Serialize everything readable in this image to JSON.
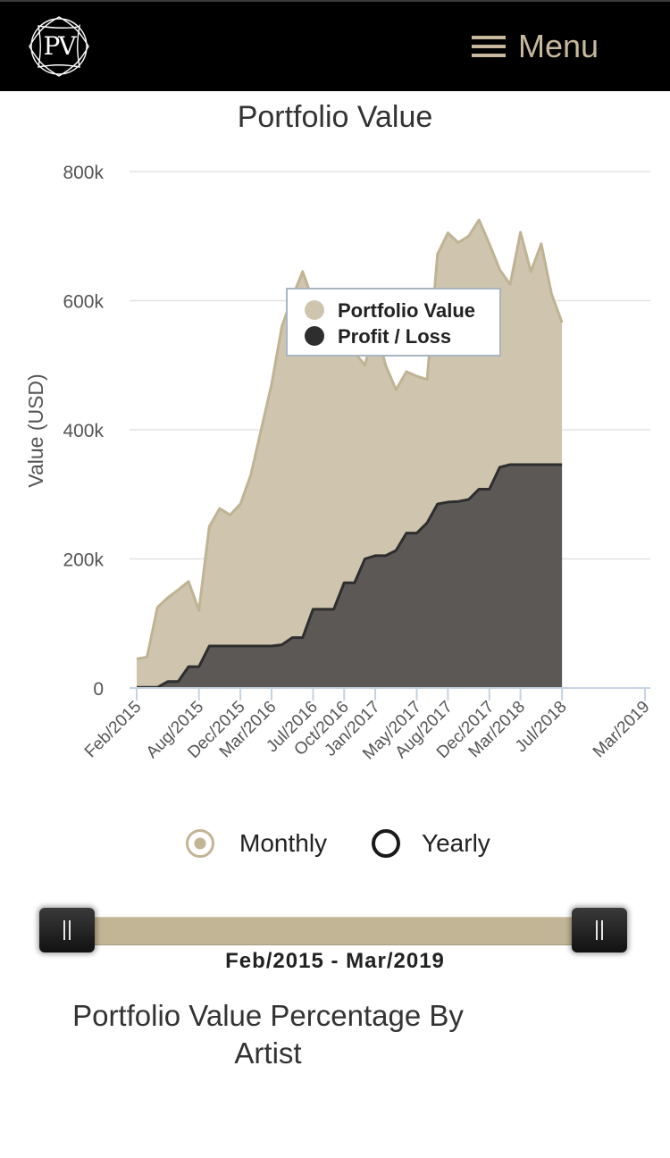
{
  "header": {
    "logo_text": "PV",
    "menu_label": "Menu"
  },
  "chart_title": "Portfolio Value",
  "chart_data": {
    "type": "area",
    "title": "Portfolio Value",
    "xlabel": "",
    "ylabel": "Value (USD)",
    "ylim": [
      0,
      800000
    ],
    "yticks": [
      0,
      200000,
      400000,
      600000,
      800000
    ],
    "ytick_labels": [
      "0",
      "200k",
      "400k",
      "600k",
      "800k"
    ],
    "x_start": "Feb/2015",
    "x_end": "Mar/2019",
    "x_tick_labels": [
      "Feb/2015",
      "Aug/2015",
      "Dec/2015",
      "Mar/2016",
      "Jul/2016",
      "Oct/2016",
      "Jan/2017",
      "May/2017",
      "Aug/2017",
      "Dec/2017",
      "Mar/2018",
      "Jul/2018",
      "Mar/2019"
    ],
    "x_tick_months": [
      0,
      6,
      10,
      13,
      17,
      20,
      23,
      27,
      30,
      34,
      37,
      41,
      49
    ],
    "grid": true,
    "legend_position": "top-center",
    "series": [
      {
        "name": "Portfolio Value",
        "color": "#cfc5af",
        "line_color": "#bfb394",
        "points": [
          [
            0,
            45000
          ],
          [
            1,
            48000
          ],
          [
            2,
            125000
          ],
          [
            3,
            140000
          ],
          [
            4,
            152000
          ],
          [
            5,
            165000
          ],
          [
            6,
            120000
          ],
          [
            7,
            250000
          ],
          [
            8,
            278000
          ],
          [
            9,
            268000
          ],
          [
            10,
            285000
          ],
          [
            11,
            330000
          ],
          [
            12,
            400000
          ],
          [
            13,
            470000
          ],
          [
            14,
            560000
          ],
          [
            15,
            605000
          ],
          [
            16,
            645000
          ],
          [
            17,
            600000
          ],
          [
            18,
            580000
          ],
          [
            19,
            560000
          ],
          [
            20,
            540000
          ],
          [
            21,
            520000
          ],
          [
            22,
            500000
          ],
          [
            23,
            560000
          ],
          [
            24,
            500000
          ],
          [
            25,
            462000
          ],
          [
            26,
            490000
          ],
          [
            27,
            483000
          ],
          [
            28,
            478000
          ],
          [
            29,
            672000
          ],
          [
            30,
            705000
          ],
          [
            31,
            690000
          ],
          [
            32,
            700000
          ],
          [
            33,
            725000
          ],
          [
            34,
            688000
          ],
          [
            35,
            648000
          ],
          [
            36,
            625000
          ],
          [
            37,
            706000
          ],
          [
            38,
            645000
          ],
          [
            39,
            688000
          ],
          [
            40,
            610000
          ],
          [
            41,
            566000
          ]
        ]
      },
      {
        "name": "Profit / Loss",
        "color": "#5c5855",
        "line_color": "#2e2e2e",
        "points": [
          [
            0,
            1000
          ],
          [
            1,
            1000
          ],
          [
            2,
            1000
          ],
          [
            3,
            10000
          ],
          [
            4,
            10000
          ],
          [
            5,
            33000
          ],
          [
            6,
            33000
          ],
          [
            7,
            65000
          ],
          [
            8,
            65000
          ],
          [
            9,
            65000
          ],
          [
            10,
            65000
          ],
          [
            11,
            65000
          ],
          [
            12,
            65000
          ],
          [
            13,
            65000
          ],
          [
            14,
            67000
          ],
          [
            15,
            78000
          ],
          [
            16,
            78000
          ],
          [
            17,
            122000
          ],
          [
            18,
            122000
          ],
          [
            19,
            122000
          ],
          [
            20,
            163000
          ],
          [
            21,
            163000
          ],
          [
            22,
            200000
          ],
          [
            23,
            205000
          ],
          [
            24,
            205000
          ],
          [
            25,
            213000
          ],
          [
            26,
            240000
          ],
          [
            27,
            240000
          ],
          [
            28,
            256000
          ],
          [
            29,
            285000
          ],
          [
            30,
            288000
          ],
          [
            31,
            289000
          ],
          [
            32,
            292000
          ],
          [
            33,
            308000
          ],
          [
            34,
            308000
          ],
          [
            35,
            342000
          ],
          [
            36,
            346000
          ],
          [
            37,
            346000
          ],
          [
            38,
            346000
          ],
          [
            39,
            346000
          ],
          [
            40,
            346000
          ],
          [
            41,
            346000
          ]
        ]
      }
    ]
  },
  "toggle": {
    "monthly_label": "Monthly",
    "yearly_label": "Yearly",
    "selected": "Monthly",
    "accent": "#c2b595"
  },
  "range_slider": {
    "label": "Feb/2015 - Mar/2019",
    "start": "Feb/2015",
    "end": "Mar/2019"
  },
  "section_title": "Portfolio Value Percentage By Artist"
}
